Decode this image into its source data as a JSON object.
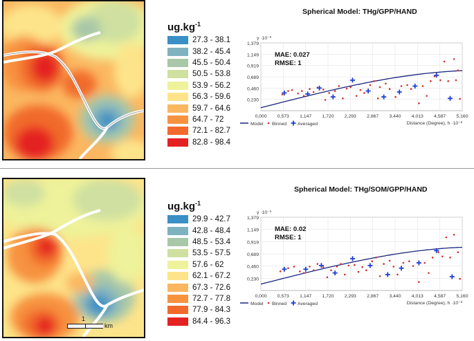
{
  "panels": [
    {
      "legend_unit": "ug.kg",
      "legend_unit_exp": "-1",
      "legend": [
        {
          "label": "27.3 - 38.1",
          "color": "#3a8fc4"
        },
        {
          "label": "38.2 - 45.4",
          "color": "#7fb2bf"
        },
        {
          "label": "45.5 - 50.4",
          "color": "#a8c8a8"
        },
        {
          "label": "50.5 - 53.8",
          "color": "#cfe0a0"
        },
        {
          "label": "53.9 - 56.2",
          "color": "#eef29a"
        },
        {
          "label": "56.3 - 59.6",
          "color": "#fde48a"
        },
        {
          "label": "59.7 - 64.6",
          "color": "#fbb760"
        },
        {
          "label": "64.7 - 72",
          "color": "#f7923f"
        },
        {
          "label": "72.1 - 82.7",
          "color": "#f16a2c"
        },
        {
          "label": "82.8 - 98.4",
          "color": "#e52222"
        }
      ],
      "chart_title": "Spherical Model: THg/GPP/HAND",
      "mae": "MAE: 0.027",
      "rmse": "RMSE: 1"
    },
    {
      "legend_unit": "ug.kg",
      "legend_unit_exp": "-1",
      "legend": [
        {
          "label": "29.9 - 42.7",
          "color": "#3a8fc4"
        },
        {
          "label": "42.8 - 48.4",
          "color": "#7fb2bf"
        },
        {
          "label": "48.5 - 53.4",
          "color": "#a8c8a8"
        },
        {
          "label": "53.5 - 57.5",
          "color": "#cfe0a0"
        },
        {
          "label": "57.6 - 62",
          "color": "#eef29a"
        },
        {
          "label": "62.1 - 67.2",
          "color": "#fde48a"
        },
        {
          "label": "67.3 - 72.6",
          "color": "#fbb760"
        },
        {
          "label": "72.7 - 77.8",
          "color": "#f7923f"
        },
        {
          "label": "77.9 - 84.3",
          "color": "#f16a2c"
        },
        {
          "label": "84.4 - 96.3",
          "color": "#e52222"
        }
      ],
      "chart_title": "Spherical Model: THg/SOM/GPP/HAND",
      "mae": "MAE: 0.02",
      "rmse": "RMSE: 1",
      "scalebar_label": "1",
      "scalebar_unit": "km"
    }
  ],
  "chart_data": [
    {
      "type": "scatter",
      "title": "Spherical Model: THg/GPP/HAND",
      "ylabel": "γ ·10⁻³",
      "xlabel": "Distance (Degree), h ·10⁻²",
      "xticks": [
        "0,000",
        "0,573",
        "1,147",
        "1,720",
        "2,293",
        "2,867",
        "3,440",
        "4,013",
        "4,587",
        "5,160"
      ],
      "yticks": [
        "0,230",
        "0,460",
        "0,689",
        "0,919",
        "1,149",
        "1,379"
      ],
      "xlim": [
        0,
        5.16
      ],
      "ylim": [
        0,
        1.379
      ],
      "legend": [
        "Model",
        "Binned",
        "Averaged"
      ],
      "model_nugget": 0.06,
      "model_partial_sill": 0.76,
      "model_range": 5.6,
      "averaged": [
        [
          0.6,
          0.36
        ],
        [
          1.2,
          0.34
        ],
        [
          1.5,
          0.46
        ],
        [
          1.85,
          0.28
        ],
        [
          2.35,
          0.62
        ],
        [
          2.75,
          0.4
        ],
        [
          3.15,
          0.28
        ],
        [
          3.55,
          0.38
        ],
        [
          3.95,
          0.5
        ],
        [
          4.5,
          0.72
        ],
        [
          4.85,
          0.25
        ]
      ],
      "binned": [
        [
          0.55,
          0.33
        ],
        [
          0.7,
          0.4
        ],
        [
          0.8,
          0.42
        ],
        [
          0.95,
          0.35
        ],
        [
          1.05,
          0.4
        ],
        [
          1.1,
          0.3
        ],
        [
          1.25,
          0.44
        ],
        [
          1.35,
          0.38
        ],
        [
          1.45,
          0.47
        ],
        [
          1.6,
          0.43
        ],
        [
          1.65,
          0.22
        ],
        [
          1.75,
          0.36
        ],
        [
          1.9,
          0.4
        ],
        [
          2.0,
          0.5
        ],
        [
          2.1,
          0.25
        ],
        [
          2.2,
          0.45
        ],
        [
          2.3,
          0.48
        ],
        [
          2.45,
          0.3
        ],
        [
          2.55,
          0.42
        ],
        [
          2.65,
          0.36
        ],
        [
          2.8,
          0.52
        ],
        [
          2.9,
          0.6
        ],
        [
          3.0,
          0.25
        ],
        [
          3.05,
          0.48
        ],
        [
          3.2,
          0.55
        ],
        [
          3.3,
          0.44
        ],
        [
          3.45,
          0.28
        ],
        [
          3.6,
          0.5
        ],
        [
          3.75,
          0.52
        ],
        [
          3.85,
          0.44
        ],
        [
          4.05,
          0.15
        ],
        [
          4.15,
          0.5
        ],
        [
          4.25,
          0.3
        ],
        [
          4.35,
          0.6
        ],
        [
          4.45,
          0.7
        ],
        [
          4.6,
          0.62
        ],
        [
          4.7,
          1.0
        ],
        [
          4.8,
          0.6
        ],
        [
          4.95,
          1.05
        ],
        [
          5.0,
          0.62
        ],
        [
          5.05,
          0.82
        ],
        [
          5.1,
          0.24
        ]
      ]
    },
    {
      "type": "scatter",
      "title": "Spherical Model: THg/SOM/GPP/HAND",
      "ylabel": "γ ·10⁻³",
      "xlabel": "Distance (Degree), h ·10⁻²",
      "xticks": [
        "0,000",
        "0,573",
        "1,147",
        "1,720",
        "2,293",
        "2,867",
        "3,440",
        "4,013",
        "4,587",
        "5,160"
      ],
      "yticks": [
        "0,230",
        "0,460",
        "0,689",
        "0,919",
        "1,149",
        "1,379"
      ],
      "xlim": [
        0,
        5.16
      ],
      "ylim": [
        0,
        1.379
      ],
      "legend": [
        "Model",
        "Binned",
        "Averaged"
      ],
      "model_nugget": 0.12,
      "model_partial_sill": 0.7,
      "model_range": 5.6,
      "averaged": [
        [
          0.6,
          0.4
        ],
        [
          1.15,
          0.4
        ],
        [
          1.55,
          0.47
        ],
        [
          1.9,
          0.33
        ],
        [
          2.35,
          0.6
        ],
        [
          2.8,
          0.47
        ],
        [
          3.25,
          0.3
        ],
        [
          3.6,
          0.42
        ],
        [
          4.05,
          0.52
        ],
        [
          4.5,
          0.75
        ],
        [
          4.9,
          0.26
        ]
      ],
      "binned": [
        [
          0.5,
          0.36
        ],
        [
          0.7,
          0.42
        ],
        [
          0.85,
          0.45
        ],
        [
          1.0,
          0.36
        ],
        [
          1.1,
          0.33
        ],
        [
          1.25,
          0.45
        ],
        [
          1.35,
          0.38
        ],
        [
          1.45,
          0.5
        ],
        [
          1.6,
          0.44
        ],
        [
          1.7,
          0.25
        ],
        [
          1.8,
          0.38
        ],
        [
          1.95,
          0.45
        ],
        [
          2.05,
          0.5
        ],
        [
          2.15,
          0.3
        ],
        [
          2.25,
          0.47
        ],
        [
          2.4,
          0.48
        ],
        [
          2.5,
          0.35
        ],
        [
          2.6,
          0.44
        ],
        [
          2.7,
          0.38
        ],
        [
          2.85,
          0.55
        ],
        [
          2.95,
          0.62
        ],
        [
          3.05,
          0.27
        ],
        [
          3.15,
          0.5
        ],
        [
          3.3,
          0.56
        ],
        [
          3.4,
          0.45
        ],
        [
          3.5,
          0.3
        ],
        [
          3.65,
          0.52
        ],
        [
          3.8,
          0.55
        ],
        [
          3.9,
          0.46
        ],
        [
          4.05,
          0.16
        ],
        [
          4.2,
          0.52
        ],
        [
          4.3,
          0.33
        ],
        [
          4.4,
          0.62
        ],
        [
          4.55,
          0.72
        ],
        [
          4.65,
          0.64
        ],
        [
          4.75,
          1.0
        ],
        [
          4.85,
          0.62
        ],
        [
          4.95,
          1.05
        ],
        [
          5.05,
          0.72
        ],
        [
          5.1,
          0.22
        ]
      ]
    }
  ]
}
